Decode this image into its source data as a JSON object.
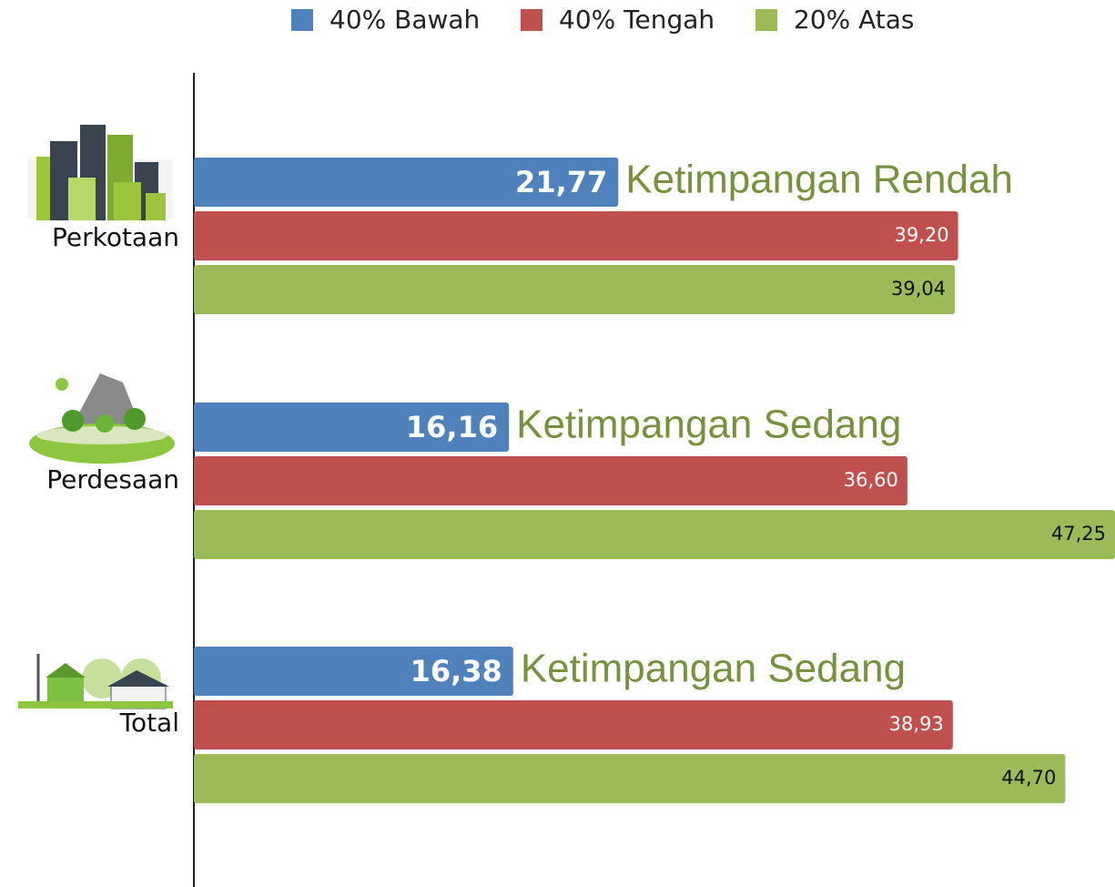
{
  "chart_data": {
    "type": "bar",
    "orientation": "horizontal",
    "categories": [
      "Perkotaan",
      "Perdesaan",
      "Total"
    ],
    "series": [
      {
        "name": "40% Bawah",
        "color": "#4f81bd",
        "values": [
          21.77,
          16.16,
          16.38
        ],
        "value_labels": [
          "21,77",
          "16,16",
          "16,38"
        ]
      },
      {
        "name": "40% Tengah",
        "color": "#c0504d",
        "values": [
          39.2,
          36.6,
          38.93
        ],
        "value_labels": [
          "39,20",
          "36,60",
          "38,93"
        ]
      },
      {
        "name": "20% Atas",
        "color": "#9bbb59",
        "values": [
          39.04,
          47.25,
          44.7
        ],
        "value_labels": [
          "39,04",
          "47,25",
          "44,70"
        ]
      }
    ],
    "annotations": [
      "Ketimpangan Rendah",
      "Ketimpangan Sedang",
      "Ketimpangan Sedang"
    ],
    "legend": "top"
  }
}
